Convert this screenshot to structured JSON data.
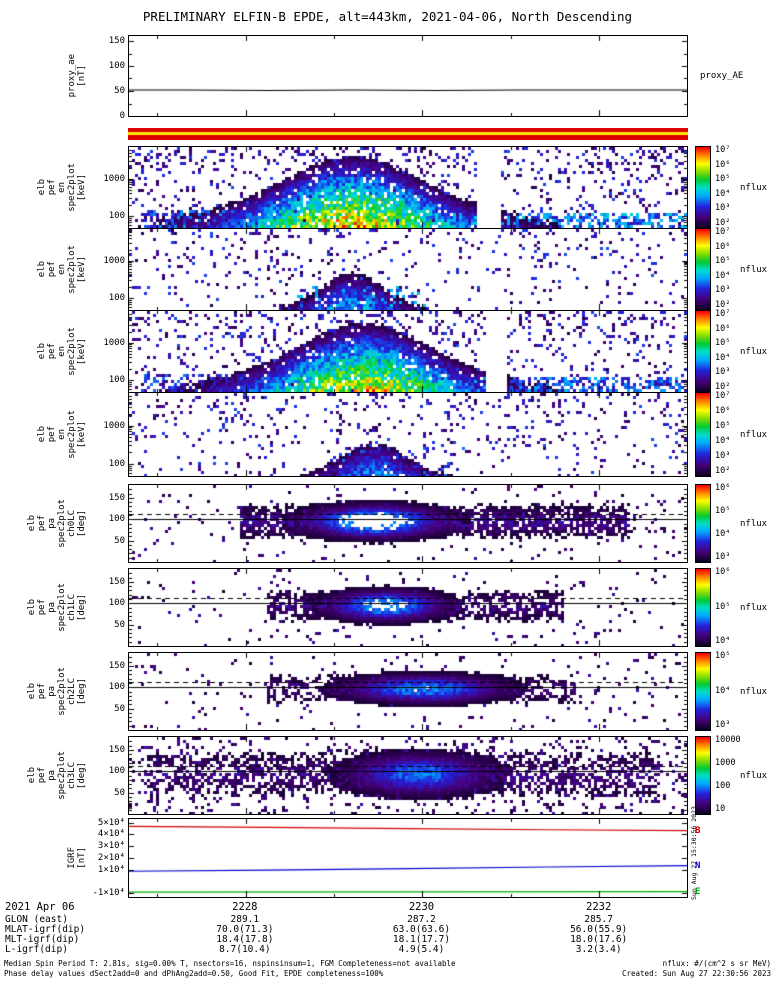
{
  "title": "PRELIMINARY ELFIN-B EPDE, alt=443km, 2021-04-06, North Descending",
  "footer": {
    "left_lines": [
      "Median Spin Period T: 2.81s, sig=0.00% T, nsectors=16, nspinsinsum=1, FGM Completeness=not available",
      "Phase delay values dSect2add=0 and dPhAng2add=0.50, Good Fit, EPDE completeness=100%"
    ],
    "right_lines": [
      "nflux: #/(cm^2 s sr MeV)",
      "Created: Sun Aug 27 22:30:56 2023"
    ],
    "side_timestamp": "Sun Aug 27 15:30:56 2023"
  },
  "xaxis": {
    "date_label": "2021 Apr 06",
    "major_ticks": [
      {
        "f": 0.209,
        "label": "2228"
      },
      {
        "f": 0.525,
        "label": "2230"
      },
      {
        "f": 0.842,
        "label": "2232"
      }
    ],
    "minor_ticks": [
      0.051,
      0.367,
      0.684
    ],
    "rows": [
      {
        "label": "GLON (east)",
        "values": [
          "289.1",
          "287.2",
          "285.7"
        ]
      },
      {
        "label": "MLAT-igrf(dip)",
        "values": [
          "70.0(71.3)",
          "63.0(63.6)",
          "56.0(55.9)"
        ]
      },
      {
        "label": "MLT-igrf(dip)",
        "values": [
          "18.4(17.8)",
          "18.1(17.7)",
          "18.0(17.6)"
        ]
      },
      {
        "label": "L-igrf(dip)",
        "values": [
          "8.7(10.4)",
          "4.9(5.4)",
          "3.2(3.4)"
        ]
      }
    ]
  },
  "chart_data": [
    {
      "id": "proxy_ae",
      "type": "line",
      "left_label_lines": [
        "proxy_ae",
        "[nT]"
      ],
      "right_label": "proxy_AE",
      "ylim": [
        0,
        160
      ],
      "yticks": [
        {
          "v": 0,
          "label": "0"
        },
        {
          "v": 50,
          "label": "50"
        },
        {
          "v": 100,
          "label": "100"
        },
        {
          "v": 150,
          "label": "150"
        }
      ],
      "yticks_minor_f": [
        0.156,
        0.469,
        0.781
      ],
      "series": [
        {
          "name": "proxy_AE",
          "color": "#000000",
          "x_frac": [
            0,
            0.1,
            0.25,
            0.4,
            0.55,
            0.7,
            0.85,
            1
          ],
          "y": [
            52,
            52,
            51,
            52,
            51,
            52,
            52,
            52
          ]
        }
      ]
    },
    {
      "id": "spin_quality_flag",
      "type": "flag",
      "stripes": [
        {
          "color": "#dd0000",
          "frac": 0.35
        },
        {
          "color": "#ffee00",
          "frac": 0.25
        },
        {
          "color": "#dd0000",
          "frac": 0.4
        }
      ]
    },
    {
      "id": "elb_pef_en_spec2plot_a",
      "type": "heatmap",
      "left_label_lines": [
        "elb",
        "pef",
        "en",
        "spec2plot",
        "[keV]"
      ],
      "yscale": "log",
      "ylim": [
        50,
        7000
      ],
      "y_unit": "keV",
      "yticks": [
        {
          "f": 0.146,
          "label": "100"
        },
        {
          "f": 0.606,
          "label": "1000"
        }
      ],
      "yticks_minor_f": [
        0.037,
        0.068,
        0.095,
        0.119,
        0.286,
        0.368,
        0.426,
        0.471,
        0.508,
        0.539,
        0.566,
        0.59,
        0.746,
        0.828,
        0.886,
        0.931,
        0.968
      ],
      "colorbar": {
        "labels": [
          "10⁷",
          "10⁶",
          "10⁵",
          "10⁴",
          "10³",
          "10²"
        ],
        "unit": "nflux"
      },
      "description": "Electron energy-flux burst ~22:28-22:30:30 UT, peak ~10^6-10^7 nflux below 200 keV, envelope extending above 2000 keV",
      "render": {
        "kind": "en",
        "seed": 11,
        "amp": 0.97,
        "dome": {
          "cx": 0.4,
          "sx": 0.17,
          "base": 0.22,
          "peak": 0.92
        },
        "gaps": [
          [
            0.625,
            0.665
          ]
        ],
        "bands": [
          {
            "x0": 0.58,
            "x1": 1.0,
            "fy": 0.2,
            "p": 0.5,
            "v": 0.4
          },
          {
            "x0": 0.02,
            "x1": 0.3,
            "fy": 0.24,
            "p": 0.38,
            "v": 0.32
          }
        ],
        "speckle_base": 0.085,
        "speckle_top": 0.16,
        "cut": 0.055
      }
    },
    {
      "id": "elb_pef_en_spec2plot_b",
      "type": "heatmap",
      "left_label_lines": [
        "elb",
        "pef",
        "en",
        "spec2plot",
        "[keV]"
      ],
      "yscale": "log",
      "ylim": [
        50,
        7000
      ],
      "y_unit": "keV",
      "yticks": [
        {
          "f": 0.146,
          "label": "100"
        },
        {
          "f": 0.606,
          "label": "1000"
        }
      ],
      "yticks_minor_f": [
        0.037,
        0.068,
        0.095,
        0.119,
        0.286,
        0.368,
        0.426,
        0.471,
        0.508,
        0.539,
        0.566,
        0.59,
        0.746,
        0.828,
        0.886,
        0.931,
        0.968
      ],
      "colorbar": {
        "labels": [
          "10⁷",
          "10⁶",
          "10⁵",
          "10⁴",
          "10³",
          "10²"
        ],
        "unit": "nflux"
      },
      "description": "Sparse flux channel: scattered low counts, faint enhancement near 22:29 below 300 keV",
      "render": {
        "kind": "en",
        "seed": 23,
        "amp": 0.5,
        "dome": {
          "cx": 0.4,
          "sx": 0.075,
          "base": 0.06,
          "peak": 0.5
        },
        "bands": [
          {
            "x0": 0.3,
            "x1": 0.55,
            "fy": 0.3,
            "p": 0.18,
            "v": 0.38
          }
        ],
        "speckle_base": 0.045,
        "speckle_top": 0.1,
        "cut": 0.055
      }
    },
    {
      "id": "elb_pef_en_spec2plot_c",
      "type": "heatmap",
      "left_label_lines": [
        "elb",
        "pef",
        "en",
        "spec2plot",
        "[keV]"
      ],
      "yscale": "log",
      "ylim": [
        50,
        7000
      ],
      "y_unit": "keV",
      "yticks": [
        {
          "f": 0.146,
          "label": "100"
        },
        {
          "f": 0.606,
          "label": "1000"
        }
      ],
      "yticks_minor_f": [
        0.037,
        0.068,
        0.095,
        0.119,
        0.286,
        0.368,
        0.426,
        0.471,
        0.508,
        0.539,
        0.566,
        0.59,
        0.746,
        0.828,
        0.886,
        0.931,
        0.968
      ],
      "colorbar": {
        "labels": [
          "10⁷",
          "10⁶",
          "10⁵",
          "10⁴",
          "10³",
          "10²"
        ],
        "unit": "nflux"
      },
      "description": "Second bright energy-flux burst, same interval, peak ~10^6-10^7 nflux near 100 keV",
      "render": {
        "kind": "en",
        "seed": 37,
        "amp": 0.93,
        "dome": {
          "cx": 0.42,
          "sx": 0.16,
          "base": 0.2,
          "peak": 0.88
        },
        "gaps": [
          [
            0.64,
            0.68
          ]
        ],
        "bands": [
          {
            "x0": 0.6,
            "x1": 1.0,
            "fy": 0.18,
            "p": 0.45,
            "v": 0.36
          },
          {
            "x0": 0.02,
            "x1": 0.28,
            "fy": 0.22,
            "p": 0.3,
            "v": 0.3
          }
        ],
        "speckle_base": 0.08,
        "speckle_top": 0.15,
        "cut": 0.055
      }
    },
    {
      "id": "elb_pef_en_spec2plot_d",
      "type": "heatmap",
      "left_label_lines": [
        "elb",
        "pef",
        "en",
        "spec2plot",
        "[keV]"
      ],
      "yscale": "log",
      "ylim": [
        50,
        7000
      ],
      "y_unit": "keV",
      "yticks": [
        {
          "f": 0.146,
          "label": "100"
        },
        {
          "f": 0.606,
          "label": "1000"
        }
      ],
      "yticks_minor_f": [
        0.037,
        0.068,
        0.095,
        0.119,
        0.286,
        0.368,
        0.426,
        0.471,
        0.508,
        0.539,
        0.566,
        0.59,
        0.746,
        0.828,
        0.886,
        0.931,
        0.968
      ],
      "colorbar": {
        "labels": [
          "10⁷",
          "10⁶",
          "10⁵",
          "10⁴",
          "10³",
          "10²"
        ],
        "unit": "nflux"
      },
      "description": "Sparse flux channel: scattered counts, weak enhancement near 22:29:30 below 300 keV",
      "render": {
        "kind": "en",
        "seed": 49,
        "amp": 0.45,
        "dome": {
          "cx": 0.44,
          "sx": 0.08,
          "base": 0.05,
          "peak": 0.45
        },
        "bands": [
          {
            "x0": 0.35,
            "x1": 0.6,
            "fy": 0.35,
            "p": 0.15,
            "v": 0.3
          }
        ],
        "speckle_base": 0.05,
        "speckle_top": 0.11,
        "cut": 0.055
      }
    },
    {
      "id": "elb_pef_pa_spec2plot_ch0LC",
      "type": "heatmap",
      "left_label_lines": [
        "elb",
        "pef",
        "pa",
        "spec2plot",
        "ch0LC",
        "[deg]"
      ],
      "ylim": [
        0,
        180
      ],
      "y_unit": "deg",
      "yticks": [
        {
          "f": 0.278,
          "label": "50"
        },
        {
          "f": 0.556,
          "label": "100"
        },
        {
          "f": 0.833,
          "label": "150"
        }
      ],
      "yticks_minor_f": [
        0.056,
        0.111,
        0.167,
        0.222,
        0.333,
        0.389,
        0.444,
        0.5,
        0.611,
        0.667,
        0.722,
        0.778,
        0.889,
        0.944
      ],
      "hlines": [
        {
          "f": 0.556,
          "style": "solid"
        },
        {
          "f": 0.625,
          "style": "dashed"
        }
      ],
      "colorbar": {
        "labels": [
          "10⁶",
          "10⁵",
          "10⁴",
          "10³"
        ],
        "unit": "nflux"
      },
      "description": "Pitch-angle band centered ~90-100 deg, bright saturated core 22:29-22:30, dark wings 22:28-22:31:30",
      "render": {
        "kind": "pa",
        "seed": 61,
        "band_fy": 0.53,
        "band_w": 0.17,
        "core": {
          "cx": 0.44,
          "sx": 0.105,
          "amp": 0.66
        },
        "wings": {
          "x0": 0.2,
          "x1": 0.9,
          "p": 0.72,
          "amp": 0.22
        },
        "sat_th": 0.5,
        "speckle": 0.045,
        "cut": 0.045
      }
    },
    {
      "id": "elb_pef_pa_spec2plot_ch1LC",
      "type": "heatmap",
      "left_label_lines": [
        "elb",
        "pef",
        "pa",
        "spec2plot",
        "ch1LC",
        "[deg]"
      ],
      "ylim": [
        0,
        180
      ],
      "y_unit": "deg",
      "yticks": [
        {
          "f": 0.278,
          "label": "50"
        },
        {
          "f": 0.556,
          "label": "100"
        },
        {
          "f": 0.833,
          "label": "150"
        }
      ],
      "yticks_minor_f": [
        0.056,
        0.111,
        0.167,
        0.222,
        0.333,
        0.389,
        0.444,
        0.5,
        0.611,
        0.667,
        0.722,
        0.778,
        0.889,
        0.944
      ],
      "hlines": [
        {
          "f": 0.556,
          "style": "solid"
        },
        {
          "f": 0.625,
          "style": "dashed"
        }
      ],
      "colorbar": {
        "labels": [
          "10⁶",
          "10⁵",
          "10⁴"
        ],
        "unit": "nflux"
      },
      "description": "Pitch-angle band ~90-100 deg, narrower bright core near 22:29:30",
      "render": {
        "kind": "pa",
        "seed": 73,
        "band_fy": 0.53,
        "band_w": 0.16,
        "core": {
          "cx": 0.46,
          "sx": 0.09,
          "amp": 0.58
        },
        "wings": {
          "x0": 0.25,
          "x1": 0.78,
          "p": 0.6,
          "amp": 0.2
        },
        "sat_th": 0.52,
        "speckle": 0.04,
        "cut": 0.045
      }
    },
    {
      "id": "elb_pef_pa_spec2plot_ch2LC",
      "type": "heatmap",
      "left_label_lines": [
        "elb",
        "pef",
        "pa",
        "spec2plot",
        "ch2LC",
        "[deg]"
      ],
      "ylim": [
        0,
        180
      ],
      "y_unit": "deg",
      "yticks": [
        {
          "f": 0.278,
          "label": "50"
        },
        {
          "f": 0.556,
          "label": "100"
        },
        {
          "f": 0.833,
          "label": "150"
        }
      ],
      "yticks_minor_f": [
        0.056,
        0.111,
        0.167,
        0.222,
        0.333,
        0.389,
        0.444,
        0.5,
        0.611,
        0.667,
        0.722,
        0.778,
        0.889,
        0.944
      ],
      "hlines": [
        {
          "f": 0.556,
          "style": "solid"
        },
        {
          "f": 0.625,
          "style": "dashed"
        }
      ],
      "colorbar": {
        "labels": [
          "10⁵",
          "10⁴",
          "10³"
        ],
        "unit": "nflux"
      },
      "description": "Pitch-angle band ~90-110 deg, blue core 22:29:30-22:30:30",
      "render": {
        "kind": "pa",
        "seed": 87,
        "band_fy": 0.54,
        "band_w": 0.15,
        "core": {
          "cx": 0.53,
          "sx": 0.12,
          "amp": 0.5
        },
        "wings": {
          "x0": 0.25,
          "x1": 0.8,
          "p": 0.5,
          "amp": 0.18
        },
        "sat_th": 0.55,
        "speckle": 0.04,
        "cut": 0.045
      }
    },
    {
      "id": "elb_pef_pa_spec2plot_ch3LC",
      "type": "heatmap",
      "left_label_lines": [
        "elb",
        "pef",
        "pa",
        "spec2plot",
        "ch3LC",
        "[deg]"
      ],
      "ylim": [
        0,
        180
      ],
      "y_unit": "deg",
      "yticks": [
        {
          "f": 0.278,
          "label": "50"
        },
        {
          "f": 0.556,
          "label": "100"
        },
        {
          "f": 0.833,
          "label": "150"
        }
      ],
      "yticks_minor_f": [
        0.056,
        0.111,
        0.167,
        0.222,
        0.333,
        0.389,
        0.444,
        0.5,
        0.611,
        0.667,
        0.722,
        0.778,
        0.889,
        0.944
      ],
      "hlines": [
        {
          "f": 0.556,
          "style": "solid"
        },
        {
          "f": 0.625,
          "style": "dashed"
        }
      ],
      "colorbar": {
        "labels": [
          "10000",
          "1000",
          "100",
          "10"
        ],
        "unit": "nflux"
      },
      "description": "Noisy highest-energy pitch-angle channel, scattered counts all angles, blue core ~90-100 deg near 22:30",
      "render": {
        "kind": "pa",
        "seed": 95,
        "band_fy": 0.52,
        "band_w": 0.22,
        "core": {
          "cx": 0.52,
          "sx": 0.11,
          "amp": 0.46
        },
        "wings": {
          "x0": 0.03,
          "x1": 0.95,
          "p": 0.5,
          "amp": 0.2
        },
        "sat_th": 0.6,
        "speckle": 0.13,
        "cut": 0.045
      }
    },
    {
      "id": "igrf",
      "type": "line",
      "left_label_lines": [
        "IGRF",
        "[nT]"
      ],
      "ylim": [
        -13000,
        53000
      ],
      "yticks": [
        {
          "v": -10000,
          "label": "-1×10⁴"
        },
        {
          "v": 10000,
          "label": "1×10⁴"
        },
        {
          "v": 20000,
          "label": "2×10⁴"
        },
        {
          "v": 30000,
          "label": "3×10⁴"
        },
        {
          "v": 40000,
          "label": "4×10⁴"
        },
        {
          "v": 50000,
          "label": "5×10⁴"
        }
      ],
      "series": [
        {
          "name": "B",
          "color": "#cc0000",
          "x_frac": [
            0,
            0.25,
            0.5,
            0.75,
            1
          ],
          "y": [
            46800,
            45900,
            44900,
            43900,
            43100
          ]
        },
        {
          "name": "N",
          "color": "#0000cc",
          "x_frac": [
            0,
            0.25,
            0.5,
            0.75,
            1
          ],
          "y": [
            8800,
            9800,
            11000,
            12400,
            13600
          ]
        },
        {
          "name": "E",
          "color": "#00aa00",
          "x_frac": [
            0,
            0.5,
            1
          ],
          "y": [
            -8800,
            -8650,
            -8500
          ]
        }
      ],
      "right_labels": [
        {
          "text": "B",
          "color": "#cc0000",
          "v": 43100
        },
        {
          "text": "N",
          "color": "#0000cc",
          "v": 13600
        },
        {
          "text": "E",
          "color": "#00aa00",
          "v": -8500
        }
      ]
    }
  ]
}
